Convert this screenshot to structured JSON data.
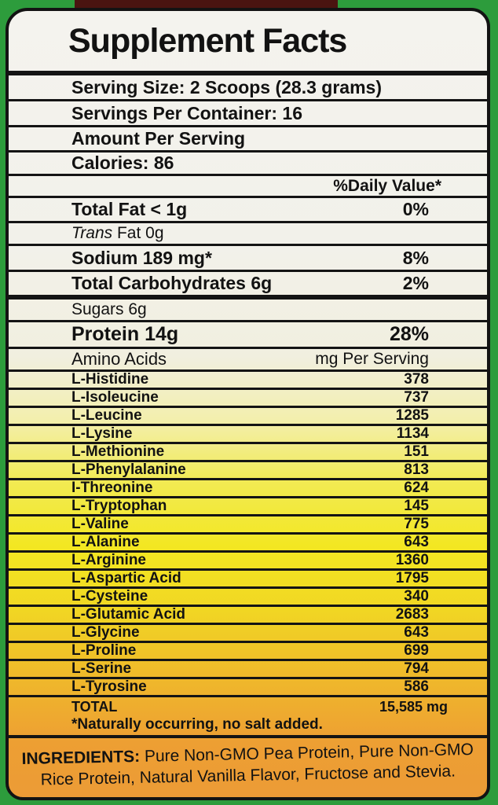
{
  "facts": {
    "title": "Supplement Facts",
    "serving_size": "Serving Size: 2 Scoops (28.3 grams)",
    "servings_per_container": "Servings Per Container: 16",
    "amount_per_serving": "Amount Per Serving",
    "calories": "Calories: 86",
    "daily_value_header": "%Daily Value*",
    "total_fat": {
      "name": "Total Fat < 1g",
      "dv": "0%"
    },
    "trans_fat": {
      "italic": "Trans",
      "rest": " Fat 0g"
    },
    "sodium": {
      "name": "Sodium 189 mg*",
      "dv": "8%"
    },
    "total_carbohydrates": {
      "name": "Total Carbohydrates 6g",
      "dv": "2%"
    },
    "sugars": {
      "name": "Sugars 6g"
    },
    "protein": {
      "name": "Protein 14g",
      "dv": "28%"
    },
    "amino_acids": {
      "header_left": "Amino Acids",
      "header_right": "mg Per Serving",
      "rows": [
        {
          "name": "L-Histidine",
          "mg": "378"
        },
        {
          "name": "L-Isoleucine",
          "mg": "737"
        },
        {
          "name": "L-Leucine",
          "mg": "1285"
        },
        {
          "name": "L-Lysine",
          "mg": "1134"
        },
        {
          "name": "L-Methionine",
          "mg": "151"
        },
        {
          "name": "L-Phenylalanine",
          "mg": "813"
        },
        {
          "name": "I-Threonine",
          "mg": "624"
        },
        {
          "name": "L-Tryptophan",
          "mg": "145"
        },
        {
          "name": "L-Valine",
          "mg": "775"
        },
        {
          "name": "L-Alanine",
          "mg": "643"
        },
        {
          "name": "L-Arginine",
          "mg": "1360"
        },
        {
          "name": "L-Aspartic Acid",
          "mg": "1795"
        },
        {
          "name": "L-Cysteine",
          "mg": "340"
        },
        {
          "name": "L-Glutamic Acid",
          "mg": "2683"
        },
        {
          "name": "L-Glycine",
          "mg": "643"
        },
        {
          "name": "L-Proline",
          "mg": "699"
        },
        {
          "name": "L-Serine",
          "mg": "794"
        },
        {
          "name": "L-Tyrosine",
          "mg": "586"
        }
      ],
      "total_label": "TOTAL",
      "total_value": "15,585 mg",
      "footnote": "*Naturally occurring, no salt added."
    },
    "ingredients": {
      "label": "INGREDIENTS:",
      "text": " Pure Non-GMO Pea Protein, Pure Non-GMO Rice Protein, Natural Vanilla Flavor, Fructose and Stevia."
    },
    "colors": {
      "background_green": "#2d9c3c",
      "label_top": "#f4f3ee",
      "label_yellow": "#f3e722",
      "label_orange": "#ec9b36",
      "line_black": "#141414",
      "top_strip_maroon": "#4a1410"
    }
  }
}
